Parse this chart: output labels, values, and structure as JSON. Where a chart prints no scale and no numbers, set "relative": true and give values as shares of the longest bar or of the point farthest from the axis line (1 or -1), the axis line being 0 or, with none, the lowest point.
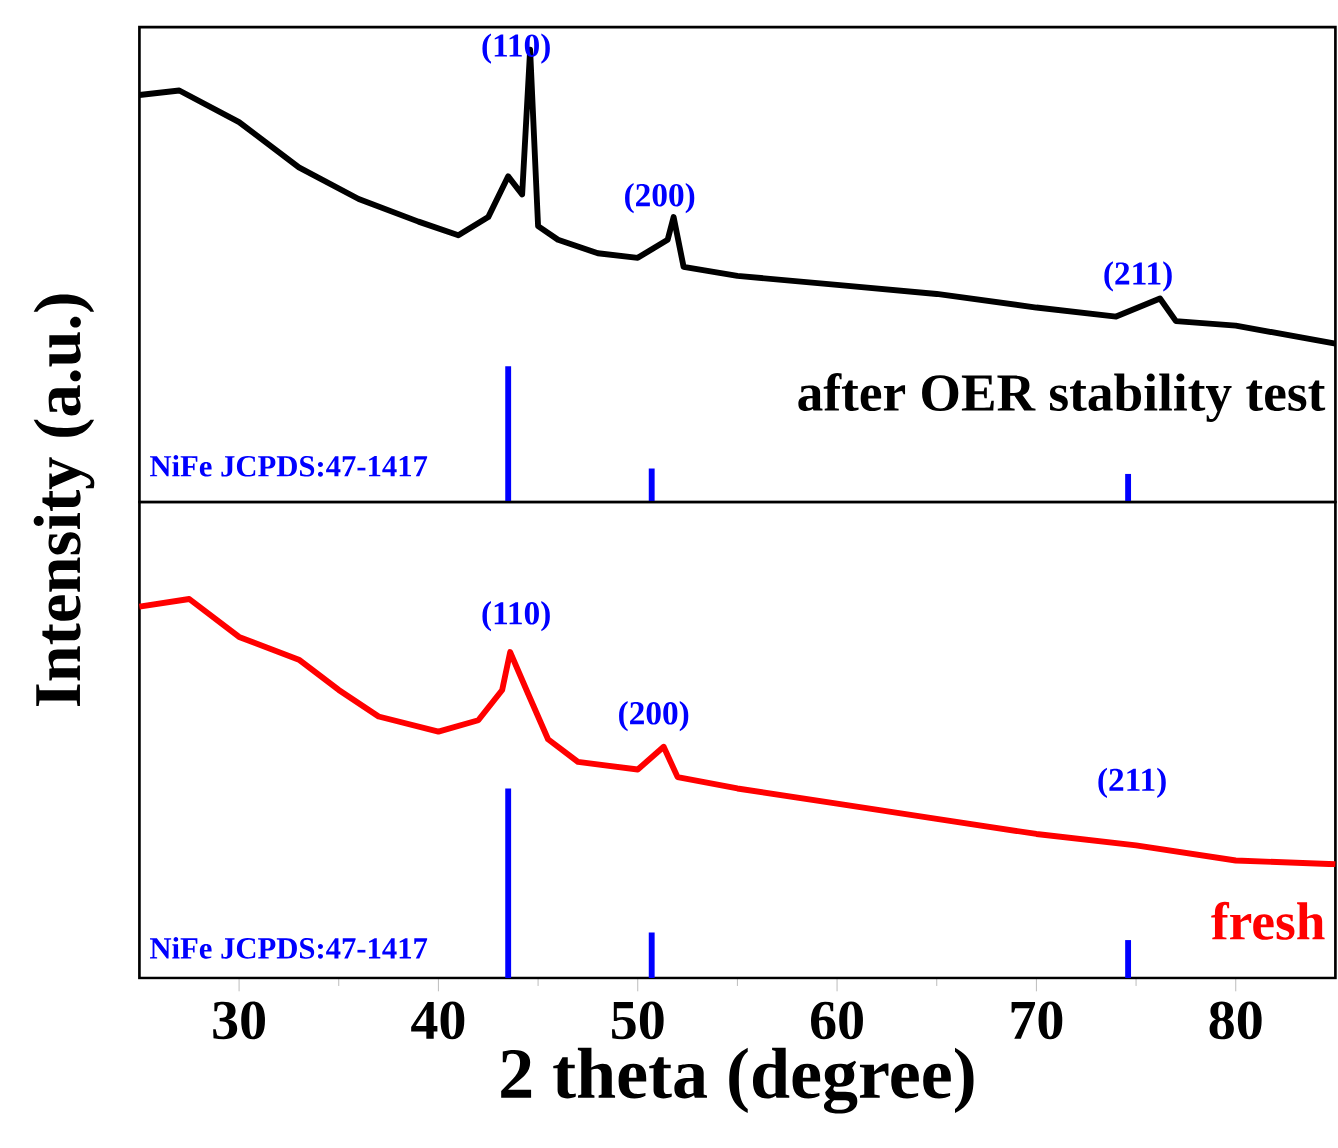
{
  "chart_data": [
    {
      "type": "line",
      "relative": true,
      "xlim": [
        25,
        85
      ],
      "tick_labels": false,
      "legend": false,
      "ylabel": "Intensity (a.u.)",
      "series": [
        {
          "name": "after OER stability test",
          "color": "#000000",
          "x": [
            25,
            27,
            30,
            33,
            36,
            39,
            41,
            42.5,
            43.5,
            44.2,
            44.6,
            45,
            46,
            48,
            50,
            51.5,
            51.8,
            52.3,
            55,
            60,
            65,
            70,
            74,
            76.2,
            77,
            80,
            85
          ],
          "values": [
            0.9,
            0.91,
            0.84,
            0.74,
            0.67,
            0.62,
            0.59,
            0.63,
            0.72,
            0.68,
            1.0,
            0.61,
            0.58,
            0.55,
            0.54,
            0.58,
            0.63,
            0.52,
            0.5,
            0.48,
            0.46,
            0.43,
            0.41,
            0.45,
            0.4,
            0.39,
            0.35
          ]
        },
        {
          "name": "NiFe JCPDS:47-1417",
          "type": "bar",
          "color": "#0000ff",
          "x": [
            43.5,
            50.7,
            74.6
          ],
          "values": [
            0.3,
            0.074,
            0.062
          ]
        }
      ],
      "annotations": [
        "(110)",
        "(200)",
        "(211)"
      ]
    },
    {
      "type": "line",
      "relative": true,
      "xlim": [
        25,
        85
      ],
      "xticks": [
        30,
        40,
        50,
        60,
        70,
        80
      ],
      "tick_labels": "x",
      "legend": false,
      "xlabel": "2 theta (degree)",
      "series": [
        {
          "name": "fresh",
          "color": "#ff0000",
          "x": [
            25,
            27.5,
            30,
            33,
            35,
            37,
            40,
            42,
            43.2,
            43.6,
            44.5,
            45.5,
            47,
            50,
            51.3,
            52,
            55,
            60,
            65,
            70,
            75,
            80,
            85
          ],
          "values": [
            0.98,
            1.0,
            0.9,
            0.84,
            0.76,
            0.69,
            0.65,
            0.68,
            0.76,
            0.86,
            0.75,
            0.63,
            0.57,
            0.55,
            0.61,
            0.53,
            0.5,
            0.46,
            0.42,
            0.38,
            0.35,
            0.31,
            0.3
          ]
        },
        {
          "name": "NiFe JCPDS:47-1417",
          "type": "bar",
          "color": "#0000ff",
          "x": [
            43.5,
            50.7,
            74.6
          ],
          "values": [
            0.5,
            0.12,
            0.1
          ]
        }
      ],
      "annotations": [
        "(110)",
        "(200)",
        "(211)"
      ]
    }
  ]
}
